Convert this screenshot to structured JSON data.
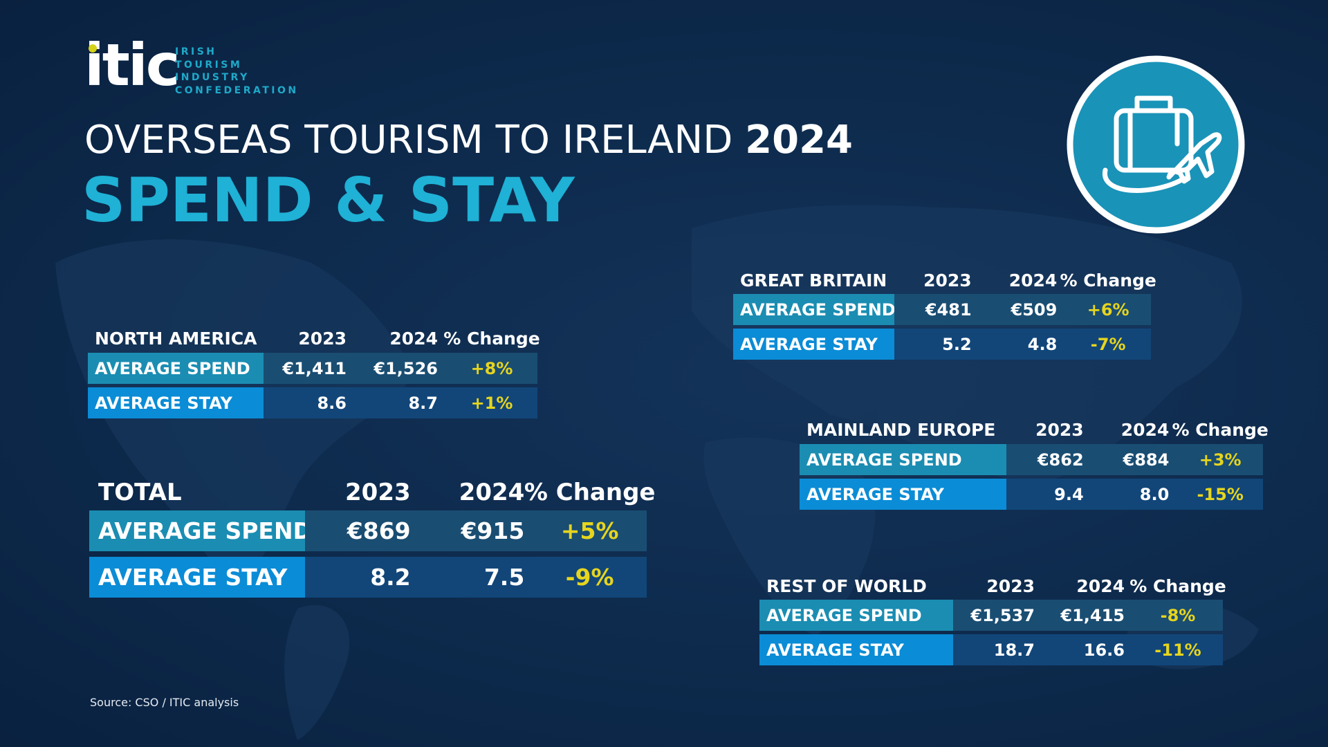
{
  "header": {
    "logo": "itic",
    "org_lines": [
      "IRISH",
      "TOURISM",
      "INDUSTRY",
      "CONFEDERATION"
    ],
    "title": "OVERSEAS TOURISM TO IRELAND",
    "title_year": "2024",
    "subtitle": "SPEND & STAY"
  },
  "tables": [
    {
      "region": "NORTH AMERICA",
      "columns": [
        "2023",
        "2024",
        "% Change"
      ],
      "rows": [
        [
          "AVERAGE SPEND",
          "€1,411",
          "€1,526",
          "+8%"
        ],
        [
          "AVERAGE STAY",
          "8.6",
          "8.7",
          "+1%"
        ]
      ]
    },
    {
      "region": "TOTAL",
      "columns": [
        "2023",
        "2024",
        "% Change"
      ],
      "rows": [
        [
          "AVERAGE SPEND",
          "€869",
          "€915",
          "+5%"
        ],
        [
          "AVERAGE STAY",
          "8.2",
          "7.5",
          "-9%"
        ]
      ]
    },
    {
      "region": "GREAT BRITAIN",
      "columns": [
        "2023",
        "2024",
        "% Change"
      ],
      "rows": [
        [
          "AVERAGE SPEND",
          "€481",
          "€509",
          "+6%"
        ],
        [
          "AVERAGE STAY",
          "5.2",
          "4.8",
          "-7%"
        ]
      ]
    },
    {
      "region": "MAINLAND EUROPE",
      "columns": [
        "2023",
        "2024",
        "% Change"
      ],
      "rows": [
        [
          "AVERAGE SPEND",
          "€862",
          "€884",
          "+3%"
        ],
        [
          "AVERAGE STAY",
          "9.4",
          "8.0",
          "-15%"
        ]
      ]
    },
    {
      "region": "REST OF WORLD",
      "columns": [
        "2023",
        "2024",
        "% Change"
      ],
      "rows": [
        [
          "AVERAGE SPEND",
          "€1,537",
          "€1,415",
          "-8%"
        ],
        [
          "AVERAGE STAY",
          "18.7",
          "16.6",
          "-11%"
        ]
      ]
    }
  ],
  "source": "Source: CSO / ITIC analysis"
}
